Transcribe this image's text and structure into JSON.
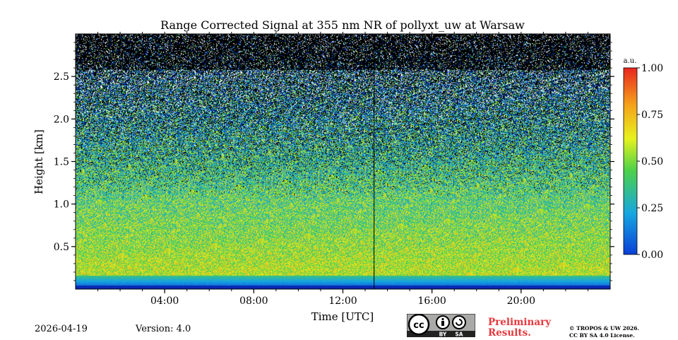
{
  "chart_data": {
    "type": "heatmap",
    "title": "Range Corrected Signal at 355 nm NR of pollyxt_uw at Warsaw",
    "xlabel": "Time [UTC]",
    "ylabel": "Height [km]",
    "xlim": [
      0,
      24
    ],
    "ylim": [
      0,
      3.0
    ],
    "x_ticks": [
      4,
      8,
      12,
      16,
      20
    ],
    "x_tick_labels": [
      "04:00",
      "08:00",
      "12:00",
      "16:00",
      "20:00"
    ],
    "y_ticks": [
      0.5,
      1.0,
      1.5,
      2.0,
      2.5
    ],
    "y_tick_labels": [
      "0.5",
      "1.0",
      "1.5",
      "2.0",
      "2.5"
    ],
    "colorbar": {
      "label": "a.u.",
      "range": [
        0,
        1
      ],
      "ticks": [
        0,
        0.25,
        0.5,
        0.75,
        1.0
      ],
      "tick_labels": [
        "0.00",
        "0.25",
        "0.50",
        "0.75",
        "1.00"
      ],
      "colors": [
        "#0a3fd6",
        "#17a6e0",
        "#4cd14a",
        "#e6f21e",
        "#f5a31a",
        "#e8251e"
      ]
    },
    "annotations": [
      {
        "type": "vertical_line",
        "x": 13.4
      }
    ]
  },
  "footer": {
    "date": "2026-04-19",
    "version": "Version: 4.0",
    "preliminary": [
      "Preliminary",
      "Results."
    ],
    "copyright": [
      "© TROPOS & UW 2026.",
      "CC BY SA 4.0 License."
    ],
    "license_badge": {
      "cc": "cc",
      "by": "BY",
      "sa": "SA"
    }
  },
  "colors": {
    "preliminary": "#e8383d",
    "badge_bg": "#a9aaa8",
    "badge_dark": "#222222"
  }
}
